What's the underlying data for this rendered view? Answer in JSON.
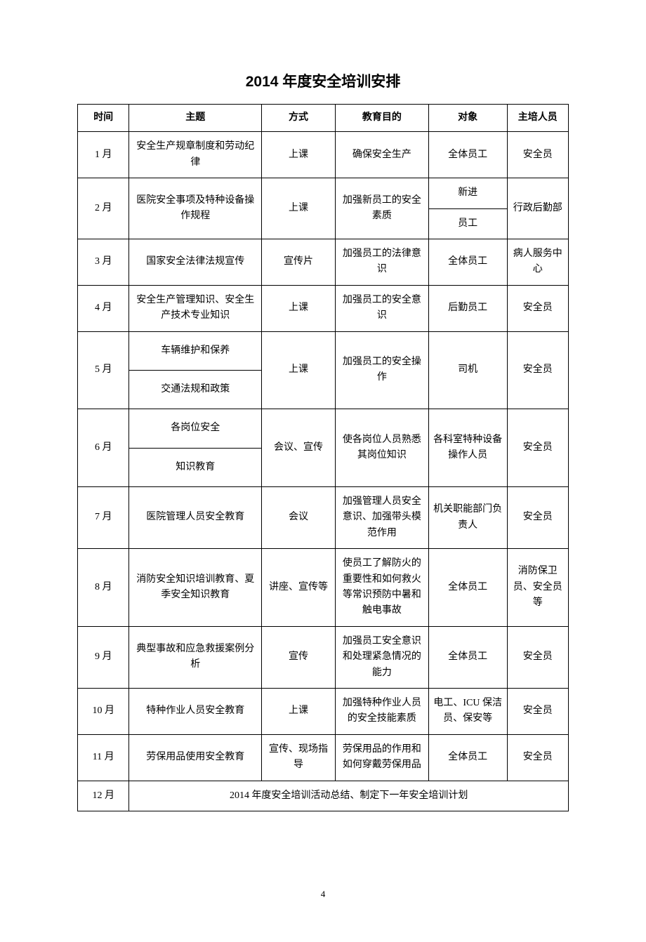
{
  "document": {
    "title": "2014 年度安全培训安排",
    "page_number": "4",
    "background_color": "#ffffff",
    "text_color": "#000000",
    "border_color": "#000000",
    "title_fontsize": 21,
    "body_fontsize": 14
  },
  "columns": {
    "time": "时间",
    "topic": "主题",
    "method": "方式",
    "purpose": "教育目的",
    "target": "对象",
    "trainer": "主培人员"
  },
  "rows": {
    "r1": {
      "time": "1 月",
      "topic": "安全生产规章制度和劳动纪律",
      "method": "上课",
      "purpose": "确保安全生产",
      "target": "全体员工",
      "trainer": "安全员"
    },
    "r2": {
      "time": "2 月",
      "topic": "医院安全事项及特种设备操作规程",
      "method": "上课",
      "purpose": "加强新员工的安全素质",
      "target_top": "新进",
      "target_bottom": "员工",
      "trainer": "行政后勤部"
    },
    "r3": {
      "time": "3 月",
      "topic": "国家安全法律法规宣传",
      "method": "宣传片",
      "purpose": "加强员工的法律意识",
      "target": "全体员工",
      "trainer": "病人服务中心"
    },
    "r4": {
      "time": "4 月",
      "topic": "安全生产管理知识、安全生产技术专业知识",
      "method": "上课",
      "purpose": "加强员工的安全意识",
      "target": "后勤员工",
      "trainer": "安全员"
    },
    "r5": {
      "time": "5 月",
      "topic_top": "车辆维护和保养",
      "topic_bottom": "交通法规和政策",
      "method": "上课",
      "purpose": "加强员工的安全操作",
      "target": "司机",
      "trainer": "安全员"
    },
    "r6": {
      "time": "6 月",
      "topic_top": "各岗位安全",
      "topic_bottom": "知识教育",
      "method": "会议、宣传",
      "purpose": "使各岗位人员熟悉其岗位知识",
      "target": "各科室特种设备操作人员",
      "trainer": "安全员"
    },
    "r7": {
      "time": "7 月",
      "topic": "医院管理人员安全教育",
      "method": "会议",
      "purpose": "加强管理人员安全意识、加强带头模范作用",
      "target": "机关职能部门负责人",
      "trainer": "安全员"
    },
    "r8": {
      "time": "8 月",
      "topic": "消防安全知识培训教育、夏季安全知识教育",
      "method": "讲座、宣传等",
      "purpose": "使员工了解防火的重要性和如何救火等常识预防中暑和触电事故",
      "target": "全体员工",
      "trainer": "消防保卫员、安全员等"
    },
    "r9": {
      "time": "9 月",
      "topic": "典型事故和应急救援案例分析",
      "method": "宣传",
      "purpose": "加强员工安全意识和处理紧急情况的能力",
      "target": "全体员工",
      "trainer": "安全员"
    },
    "r10": {
      "time": "10 月",
      "topic": "特种作业人员安全教育",
      "method": "上课",
      "purpose": "加强特种作业人员的安全技能素质",
      "target": "电工、ICU 保洁员、保安等",
      "trainer": "安全员"
    },
    "r11": {
      "time": "11 月",
      "topic": "劳保用品使用安全教育",
      "method": "宣传、现场指导",
      "purpose": "劳保用品的作用和如何穿戴劳保用品",
      "target": "全体员工",
      "trainer": "安全员"
    },
    "r12": {
      "time": "12 月",
      "summary": "2014 年度安全培训活动总结、制定下一年安全培训计划"
    }
  }
}
